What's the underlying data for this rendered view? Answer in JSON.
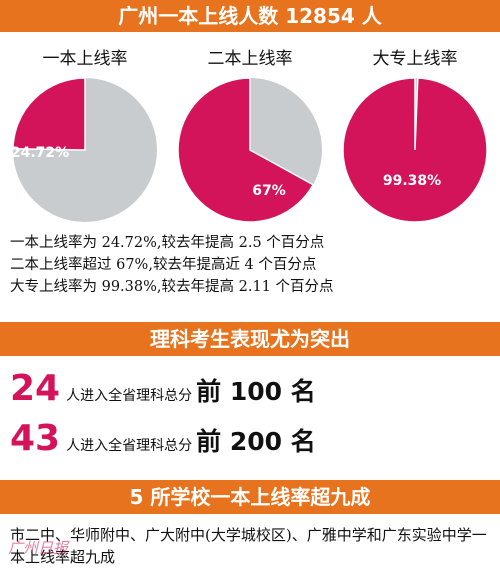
{
  "colors": {
    "banner": "#e8731e",
    "pie_fill": "#d4145a",
    "pie_rest": "#c9ccce",
    "accent": "#d4145a"
  },
  "banners": {
    "top": "广州一本上线人数 12854 人",
    "middle": "理科考生表现尤为突出",
    "bottom": "5 所学校一本上线率超九成"
  },
  "chart_data": [
    {
      "type": "pie",
      "title": "一本上线率",
      "value": 24.72,
      "rest": 75.28,
      "label": "24.72%"
    },
    {
      "type": "pie",
      "title": "二本上线率",
      "value": 67,
      "rest": 33,
      "label": "67%"
    },
    {
      "type": "pie",
      "title": "大专上线率",
      "value": 99.38,
      "rest": 0.62,
      "label": "99.38%"
    }
  ],
  "notes": [
    "一本上线率为 24.72%,较去年提高 2.5 个百分点",
    "二本上线率超过 67%,较去年提高近 4 个百分点",
    "大专上线率为 99.38%,较去年提高 2.11 个百分点"
  ],
  "rankings": [
    {
      "count": "24",
      "text": "人进入全省理科总分",
      "rank": "前 100 名"
    },
    {
      "count": "43",
      "text": "人进入全省理科总分",
      "rank": "前 200 名"
    }
  ],
  "schools_text": "市二中、华师附中、广大附中(大学城校区)、广雅中学和广东实验中学一本上线率超九成",
  "watermark": "广州日报"
}
